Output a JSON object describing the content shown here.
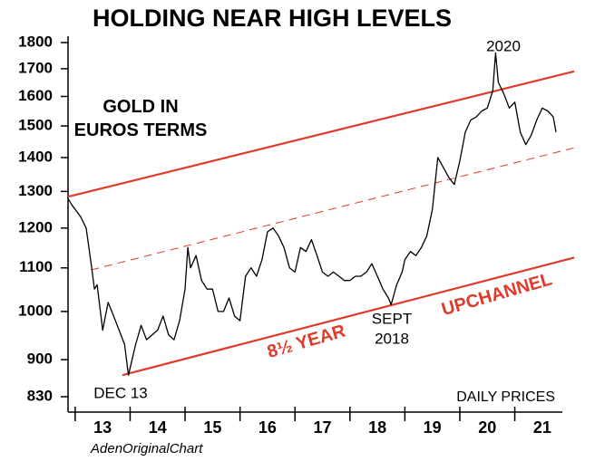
{
  "chart_data": {
    "type": "line",
    "title": "HOLDING NEAR HIGH LEVELS",
    "subtitle": "GOLD IN EUROS TERMS",
    "color": "#000000",
    "log_scale": true,
    "ylim": [
      830,
      1800
    ],
    "yticks": [
      830,
      900,
      1000,
      1100,
      1200,
      1300,
      1400,
      1500,
      1600,
      1700,
      1800
    ],
    "xlim": [
      2012.87,
      2022.08
    ],
    "xticks": [
      {
        "value": 2013.5,
        "label": "13"
      },
      {
        "value": 2014.5,
        "label": "14"
      },
      {
        "value": 2015.5,
        "label": "15"
      },
      {
        "value": 2016.5,
        "label": "16"
      },
      {
        "value": 2017.5,
        "label": "17"
      },
      {
        "value": 2018.5,
        "label": "18"
      },
      {
        "value": 2019.5,
        "label": "19"
      },
      {
        "value": 2020.5,
        "label": "20"
      },
      {
        "value": 2021.5,
        "label": "21"
      }
    ],
    "xminorticks": [
      2013,
      2014,
      2015,
      2016,
      2017,
      2018,
      2019,
      2020,
      2021
    ],
    "x": [
      2012.87,
      2012.95,
      2013.0,
      2013.1,
      2013.2,
      2013.3,
      2013.35,
      2013.4,
      2013.5,
      2013.6,
      2013.7,
      2013.8,
      2013.9,
      2013.97,
      2014.1,
      2014.2,
      2014.3,
      2014.4,
      2014.5,
      2014.6,
      2014.7,
      2014.8,
      2014.9,
      2015.0,
      2015.05,
      2015.1,
      2015.2,
      2015.3,
      2015.4,
      2015.5,
      2015.6,
      2015.7,
      2015.8,
      2015.9,
      2016.0,
      2016.1,
      2016.2,
      2016.3,
      2016.4,
      2016.5,
      2016.6,
      2016.7,
      2016.8,
      2016.9,
      2017.0,
      2017.1,
      2017.2,
      2017.3,
      2017.4,
      2017.5,
      2017.6,
      2017.7,
      2017.8,
      2017.9,
      2018.0,
      2018.1,
      2018.2,
      2018.3,
      2018.4,
      2018.5,
      2018.6,
      2018.7,
      2018.75,
      2018.85,
      2018.95,
      2019.0,
      2019.1,
      2019.2,
      2019.3,
      2019.4,
      2019.5,
      2019.6,
      2019.7,
      2019.8,
      2019.9,
      2020.0,
      2020.1,
      2020.2,
      2020.3,
      2020.4,
      2020.5,
      2020.6,
      2020.65,
      2020.7,
      2020.8,
      2020.9,
      2021.0,
      2021.1,
      2021.2,
      2021.3,
      2021.4,
      2021.5,
      2021.6,
      2021.7,
      2021.75
    ],
    "values": [
      1280,
      1260,
      1250,
      1230,
      1200,
      1100,
      1050,
      1060,
      960,
      1020,
      990,
      960,
      930,
      870,
      930,
      970,
      940,
      950,
      960,
      990,
      950,
      940,
      980,
      1050,
      1150,
      1100,
      1130,
      1070,
      1050,
      1050,
      1000,
      1000,
      1030,
      990,
      980,
      1080,
      1100,
      1080,
      1120,
      1190,
      1200,
      1180,
      1150,
      1100,
      1090,
      1150,
      1140,
      1170,
      1130,
      1090,
      1080,
      1090,
      1080,
      1070,
      1070,
      1080,
      1080,
      1090,
      1110,
      1080,
      1050,
      1030,
      1015,
      1060,
      1090,
      1120,
      1140,
      1130,
      1150,
      1180,
      1250,
      1400,
      1370,
      1340,
      1320,
      1390,
      1480,
      1520,
      1530,
      1550,
      1560,
      1620,
      1760,
      1650,
      1610,
      1560,
      1580,
      1480,
      1440,
      1470,
      1520,
      1560,
      1550,
      1530,
      1480
    ],
    "channel_color": "#e03a2a",
    "channel_lines": [
      {
        "x": [
          2012.87,
          2022.08
        ],
        "values": [
          1285,
          1690
        ],
        "dashed": false
      },
      {
        "x": [
          2013.29,
          2022.08
        ],
        "values": [
          1095,
          1430
        ],
        "dashed": true
      },
      {
        "x": [
          2013.86,
          2022.08
        ],
        "values": [
          870,
          1125
        ],
        "dashed": false
      }
    ],
    "annotations": [
      "2020",
      "DEC 13",
      "SEPT",
      "2018",
      "8½ YEAR",
      "UPCHANNEL",
      "DAILY PRICES",
      "AdenOriginalChart"
    ]
  }
}
